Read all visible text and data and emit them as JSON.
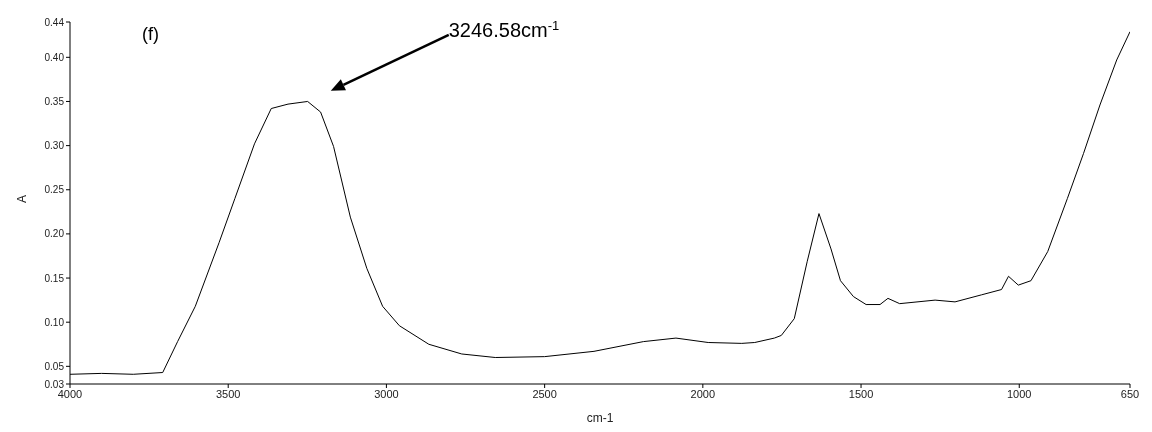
{
  "chart_data": {
    "type": "line",
    "xlabel": "cm-1",
    "ylabel": "A",
    "annotations": [
      "(f)",
      "3246.58cm$^{-1}$"
    ],
    "xlim": [
      4000,
      650
    ],
    "xticks": [
      4000,
      3500,
      3000,
      2500,
      2000,
      1500,
      1000,
      650
    ],
    "ylim": [
      0.03,
      0.44
    ],
    "yticks": [
      {
        "value": 0.03,
        "label": "0.03"
      },
      {
        "value": 0.05,
        "label": "0.05"
      },
      {
        "value": 0.1,
        "label": "0.10"
      },
      {
        "value": 0.15,
        "label": "0.15"
      },
      {
        "value": 0.2,
        "label": "0.20"
      },
      {
        "value": 0.25,
        "label": "0.25"
      },
      {
        "value": 0.3,
        "label": "0.30"
      },
      {
        "value": 0.35,
        "label": "0.35"
      },
      {
        "value": 0.4,
        "label": "0.40"
      },
      {
        "value": 0.44,
        "label": "0.44"
      }
    ],
    "grid": false,
    "marker": "none",
    "line_style": "solid",
    "series": [
      {
        "color": "#000000",
        "x": [
          4000,
          3900,
          3800,
          3707,
          3660,
          3604,
          3529,
          3479,
          3417,
          3364,
          3311,
          3249,
          3208,
          3167,
          3114,
          3062,
          3012,
          2959,
          2866,
          2762,
          2656,
          2500,
          2344,
          2188,
          2085,
          1983,
          1877,
          1836,
          1774,
          1752,
          1711,
          1670,
          1633,
          1595,
          1565,
          1524,
          1484,
          1440,
          1415,
          1378,
          1266,
          1203,
          1119,
          1056,
          1034,
          1003,
          963,
          910,
          848,
          797,
          745,
          692,
          650
        ],
        "values": [
          0.041,
          0.042,
          0.041,
          0.043,
          0.078,
          0.118,
          0.19,
          0.24,
          0.302,
          0.342,
          0.347,
          0.35,
          0.338,
          0.299,
          0.219,
          0.161,
          0.118,
          0.096,
          0.075,
          0.064,
          0.06,
          0.061,
          0.067,
          0.078,
          0.082,
          0.077,
          0.076,
          0.077,
          0.082,
          0.085,
          0.104,
          0.169,
          0.223,
          0.183,
          0.147,
          0.129,
          0.12,
          0.12,
          0.127,
          0.121,
          0.125,
          0.123,
          0.131,
          0.137,
          0.152,
          0.142,
          0.147,
          0.18,
          0.24,
          0.291,
          0.346,
          0.397,
          0.429
        ]
      }
    ]
  }
}
